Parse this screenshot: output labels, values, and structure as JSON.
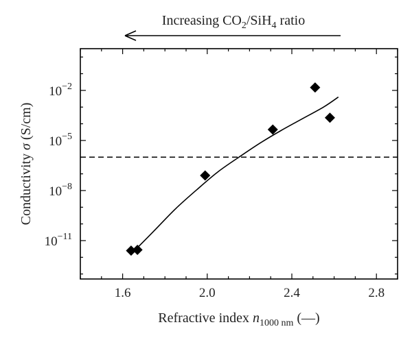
{
  "chart_data": {
    "type": "scatter",
    "title": "",
    "annotation": {
      "prefix": "Increasing CO",
      "sub1": "2",
      "middle": "/SiH",
      "sub2": "4",
      "suffix": " ratio",
      "arrow_direction": "left"
    },
    "xlabel": {
      "prefix": "Refractive index ",
      "symbol": "n",
      "subscript": "1000 nm",
      "suffix": " (—)"
    },
    "ylabel": {
      "prefix": "Conductivity ",
      "symbol": "σ",
      "suffix": " (S/cm)"
    },
    "xlim": [
      1.4,
      2.9
    ],
    "ylim_log10": [
      -13.3,
      0.5
    ],
    "yscale": "log",
    "x_ticks": [
      {
        "value": 1.6,
        "label": "1.6"
      },
      {
        "value": 2.0,
        "label": "2.0"
      },
      {
        "value": 2.4,
        "label": "2.4"
      },
      {
        "value": 2.8,
        "label": "2.8"
      }
    ],
    "y_ticks": [
      {
        "exp": -11,
        "base": "10",
        "label": "−11"
      },
      {
        "exp": -8,
        "base": "10",
        "label": "−8"
      },
      {
        "exp": -5,
        "base": "10",
        "label": "−5"
      },
      {
        "exp": -2,
        "base": "10",
        "label": "−2"
      }
    ],
    "series": [
      {
        "marker": "diamond",
        "color": "#000000",
        "points": [
          {
            "x": 1.64,
            "y": 2.5e-12
          },
          {
            "x": 1.67,
            "y": 2.8e-12
          },
          {
            "x": 1.99,
            "y": 8e-08
          },
          {
            "x": 2.31,
            "y": 4.5e-05
          },
          {
            "x": 2.51,
            "y": 0.015
          },
          {
            "x": 2.58,
            "y": 0.00023
          }
        ]
      },
      {
        "type": "line",
        "style": "solid",
        "color": "#000000",
        "points": [
          {
            "x": 1.66,
            "y": 2.8e-12
          },
          {
            "x": 1.75,
            "y": 4e-11
          },
          {
            "x": 1.85,
            "y": 8e-10
          },
          {
            "x": 1.95,
            "y": 1.1e-08
          },
          {
            "x": 2.05,
            "y": 1.3e-07
          },
          {
            "x": 2.15,
            "y": 1e-06
          },
          {
            "x": 2.25,
            "y": 7e-06
          },
          {
            "x": 2.35,
            "y": 4e-05
          },
          {
            "x": 2.45,
            "y": 0.0002
          },
          {
            "x": 2.55,
            "y": 0.001
          },
          {
            "x": 2.62,
            "y": 0.004
          }
        ]
      },
      {
        "type": "line",
        "style": "dashed",
        "color": "#000000",
        "points": [
          {
            "x": 1.4,
            "y": 1e-06
          },
          {
            "x": 2.9,
            "y": 1e-06
          }
        ]
      }
    ],
    "grid": false,
    "legend": "none"
  }
}
